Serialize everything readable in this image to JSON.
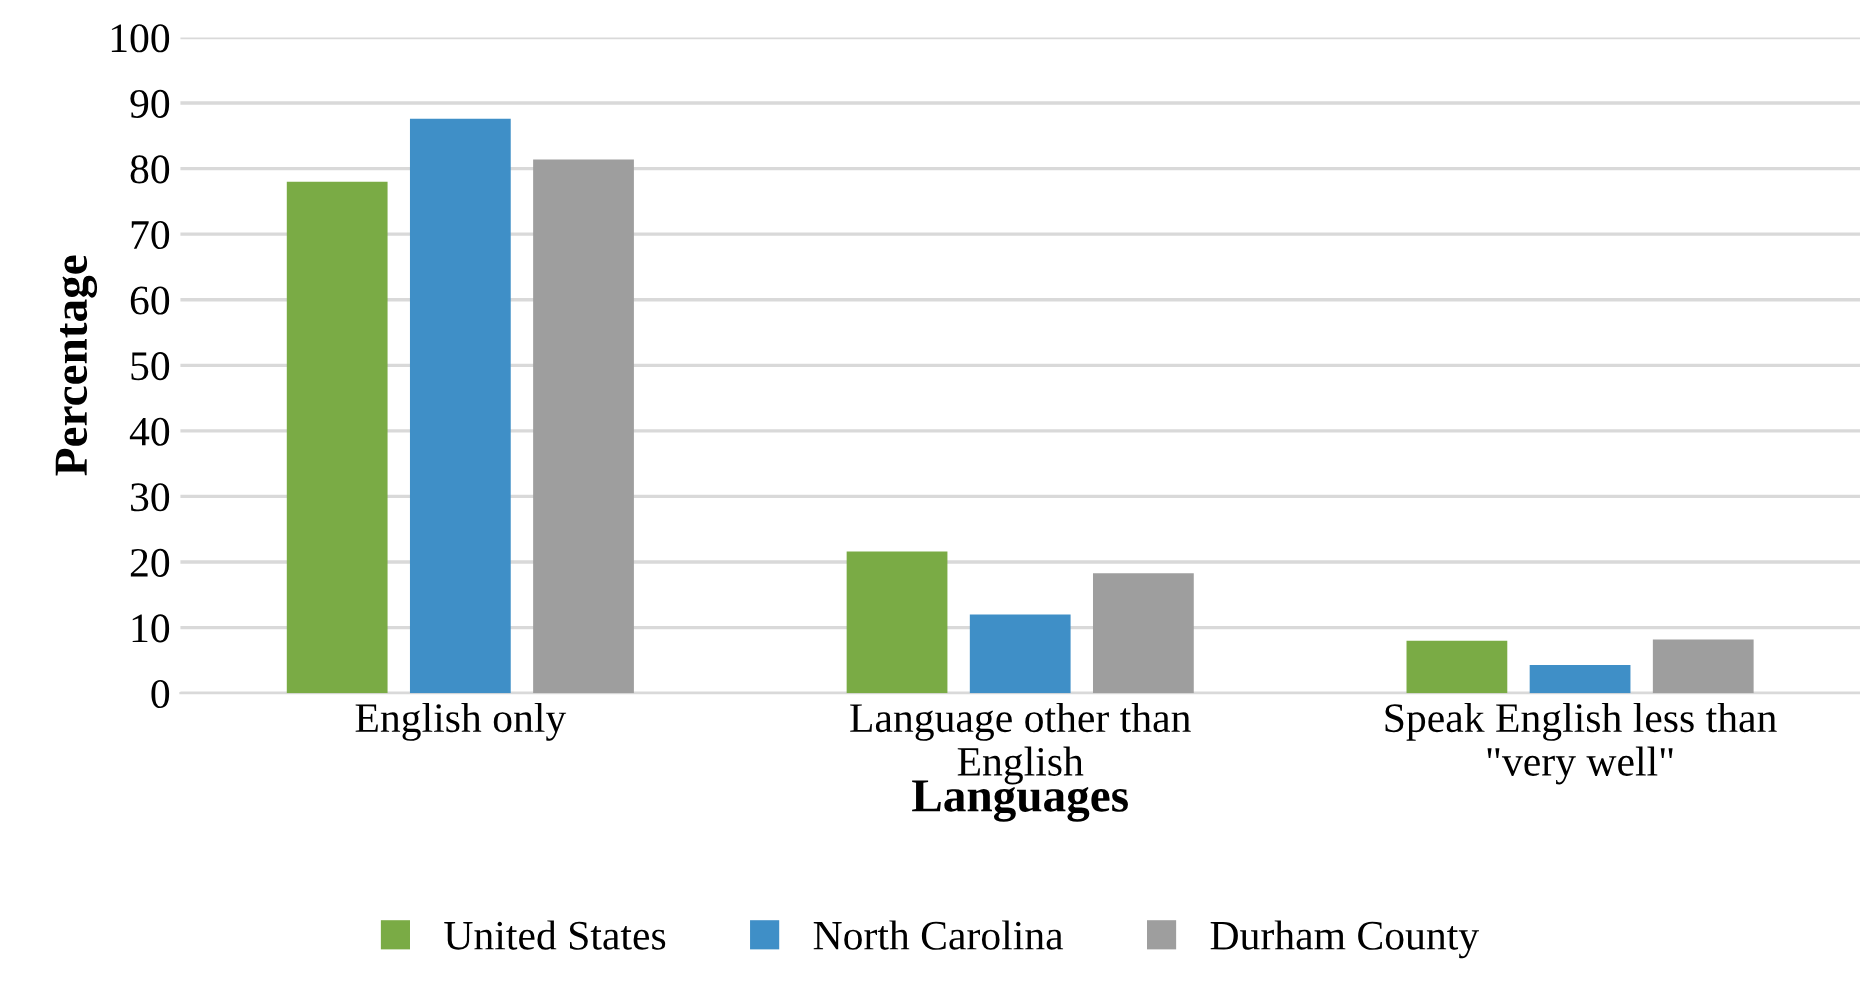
{
  "chart_data": {
    "type": "bar",
    "xlabel": "Languages",
    "ylabel": "Percentage",
    "categories": [
      "English only",
      "Language other than\nEnglish",
      "Speak English less than\n\"very well\""
    ],
    "series": [
      {
        "name": "United States",
        "color": "#7aab45",
        "values": [
          78.0,
          21.6,
          8.0
        ]
      },
      {
        "name": "North Carolina",
        "color": "#3f8fc7",
        "values": [
          87.6,
          12.0,
          4.3
        ]
      },
      {
        "name": "Durham County",
        "color": "#9e9e9e",
        "values": [
          81.4,
          18.3,
          8.2
        ]
      }
    ],
    "ylim": [
      0,
      100
    ],
    "yticks": [
      0,
      10,
      20,
      30,
      40,
      50,
      60,
      70,
      80,
      90,
      100
    ],
    "grid": "y",
    "legend": "bottom"
  }
}
